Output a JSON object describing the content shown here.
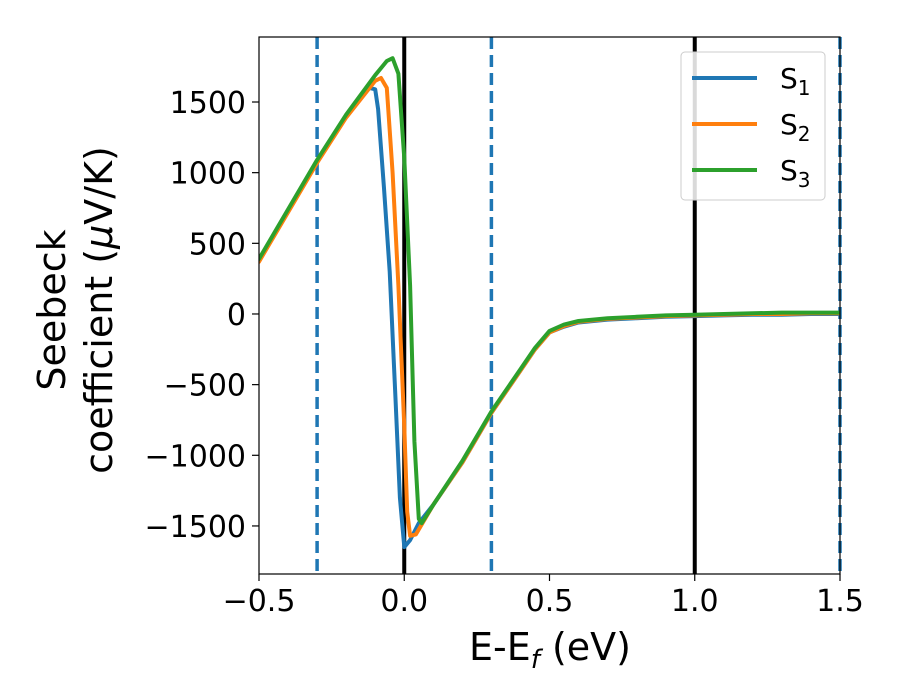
{
  "chart_data": {
    "type": "line",
    "xlabel": {
      "main": "E-E",
      "sub": "f",
      "unit": " (eV)"
    },
    "ylabel": {
      "line1": "Seebeck",
      "line2_prefix": "coefficient  (",
      "mu": "μ",
      "line2_suffix": "V/K)"
    },
    "xlim": [
      -0.5,
      1.5
    ],
    "ylim": [
      -1840,
      1960
    ],
    "xticks": [
      -0.5,
      0.0,
      0.5,
      1.0,
      1.5
    ],
    "xtick_labels": [
      "−0.5",
      "0.0",
      "0.5",
      "1.0",
      "1.5"
    ],
    "yticks": [
      -1500,
      -1000,
      -500,
      0,
      500,
      1000,
      1500
    ],
    "ytick_labels": [
      "−1500",
      "−1000",
      "−500",
      "0",
      "500",
      "1000",
      "1500"
    ],
    "grid": false,
    "legend_position": "top-right",
    "vlines": [
      {
        "x": -0.3,
        "style": "dashed",
        "color": "#1f77b4"
      },
      {
        "x": 0.3,
        "style": "dashed",
        "color": "#1f77b4"
      },
      {
        "x": 1.5,
        "style": "dashed",
        "color": "#1f77b4"
      },
      {
        "x": 0.0,
        "style": "solid",
        "color": "#000000"
      },
      {
        "x": 1.0,
        "style": "solid",
        "color": "#000000"
      }
    ],
    "series": [
      {
        "name": "S",
        "sub": "1",
        "color": "#1f77b4",
        "points": [
          [
            -0.5,
            380
          ],
          [
            -0.3,
            1080
          ],
          [
            -0.2,
            1400
          ],
          [
            -0.12,
            1600
          ],
          [
            -0.1,
            1590
          ],
          [
            -0.09,
            1450
          ],
          [
            -0.07,
            900
          ],
          [
            -0.05,
            300
          ],
          [
            -0.03,
            -600
          ],
          [
            -0.015,
            -1300
          ],
          [
            0.0,
            -1650
          ],
          [
            0.02,
            -1600
          ],
          [
            0.05,
            -1480
          ],
          [
            0.1,
            -1350
          ],
          [
            0.2,
            -1050
          ],
          [
            0.3,
            -700
          ],
          [
            0.4,
            -400
          ],
          [
            0.45,
            -250
          ],
          [
            0.5,
            -130
          ],
          [
            0.55,
            -90
          ],
          [
            0.6,
            -60
          ],
          [
            0.7,
            -40
          ],
          [
            0.8,
            -30
          ],
          [
            0.9,
            -20
          ],
          [
            1.0,
            -15
          ],
          [
            1.1,
            -10
          ],
          [
            1.2,
            -5
          ],
          [
            1.3,
            -5
          ],
          [
            1.4,
            0
          ],
          [
            1.5,
            0
          ]
        ]
      },
      {
        "name": "S",
        "sub": "2",
        "color": "#ff7f0e",
        "points": [
          [
            -0.5,
            370
          ],
          [
            -0.3,
            1070
          ],
          [
            -0.2,
            1390
          ],
          [
            -0.1,
            1650
          ],
          [
            -0.08,
            1670
          ],
          [
            -0.06,
            1600
          ],
          [
            -0.04,
            1000
          ],
          [
            -0.02,
            200
          ],
          [
            0.0,
            -800
          ],
          [
            0.01,
            -1400
          ],
          [
            0.02,
            -1570
          ],
          [
            0.04,
            -1560
          ],
          [
            0.06,
            -1490
          ],
          [
            0.1,
            -1350
          ],
          [
            0.2,
            -1050
          ],
          [
            0.3,
            -700
          ],
          [
            0.4,
            -400
          ],
          [
            0.45,
            -250
          ],
          [
            0.5,
            -130
          ],
          [
            0.55,
            -85
          ],
          [
            0.6,
            -55
          ],
          [
            0.7,
            -35
          ],
          [
            0.8,
            -25
          ],
          [
            0.9,
            -15
          ],
          [
            1.0,
            -10
          ],
          [
            1.1,
            -5
          ],
          [
            1.2,
            0
          ],
          [
            1.3,
            0
          ],
          [
            1.4,
            5
          ],
          [
            1.5,
            5
          ]
        ]
      },
      {
        "name": "S",
        "sub": "3",
        "color": "#2ca02c",
        "points": [
          [
            -0.5,
            390
          ],
          [
            -0.3,
            1090
          ],
          [
            -0.2,
            1410
          ],
          [
            -0.1,
            1690
          ],
          [
            -0.06,
            1790
          ],
          [
            -0.04,
            1810
          ],
          [
            -0.02,
            1700
          ],
          [
            0.0,
            1100
          ],
          [
            0.02,
            200
          ],
          [
            0.035,
            -900
          ],
          [
            0.05,
            -1450
          ],
          [
            0.06,
            -1480
          ],
          [
            0.1,
            -1350
          ],
          [
            0.2,
            -1040
          ],
          [
            0.3,
            -690
          ],
          [
            0.4,
            -390
          ],
          [
            0.45,
            -240
          ],
          [
            0.5,
            -120
          ],
          [
            0.55,
            -75
          ],
          [
            0.6,
            -50
          ],
          [
            0.7,
            -30
          ],
          [
            0.8,
            -20
          ],
          [
            0.9,
            -10
          ],
          [
            1.0,
            -5
          ],
          [
            1.1,
            0
          ],
          [
            1.2,
            5
          ],
          [
            1.3,
            10
          ],
          [
            1.4,
            10
          ],
          [
            1.5,
            10
          ]
        ]
      }
    ]
  }
}
